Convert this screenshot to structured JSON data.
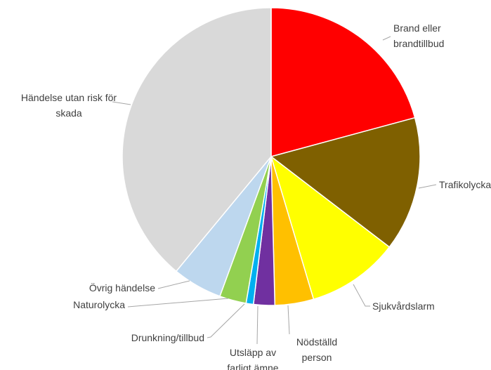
{
  "chart_data": {
    "type": "pie",
    "title": "",
    "start_angle_deg": 0,
    "direction": "clockwise",
    "slices": [
      {
        "label": "Brand eller brandtillbud",
        "value": 20.8,
        "color": "#ff0000"
      },
      {
        "label": "Trafikolycka",
        "value": 14.6,
        "color": "#7f6000"
      },
      {
        "label": "Sjukvårdslarm",
        "value": 10.0,
        "color": "#ffff00"
      },
      {
        "label": "Nödställd person",
        "value": 4.2,
        "color": "#ffc000"
      },
      {
        "label": "Utsläpp av farligt ämne",
        "value": 2.3,
        "color": "#7030a0"
      },
      {
        "label": "Drunkning/tillbud",
        "value": 0.8,
        "color": "#00b0f0"
      },
      {
        "label": "Naturolycka",
        "value": 2.9,
        "color": "#92d050"
      },
      {
        "label": "Övrig händelse",
        "value": 5.4,
        "color": "#bdd7ee"
      },
      {
        "label": "Händelse utan risk för skada",
        "value": 39.0,
        "color": "#d9d9d9"
      }
    ]
  }
}
